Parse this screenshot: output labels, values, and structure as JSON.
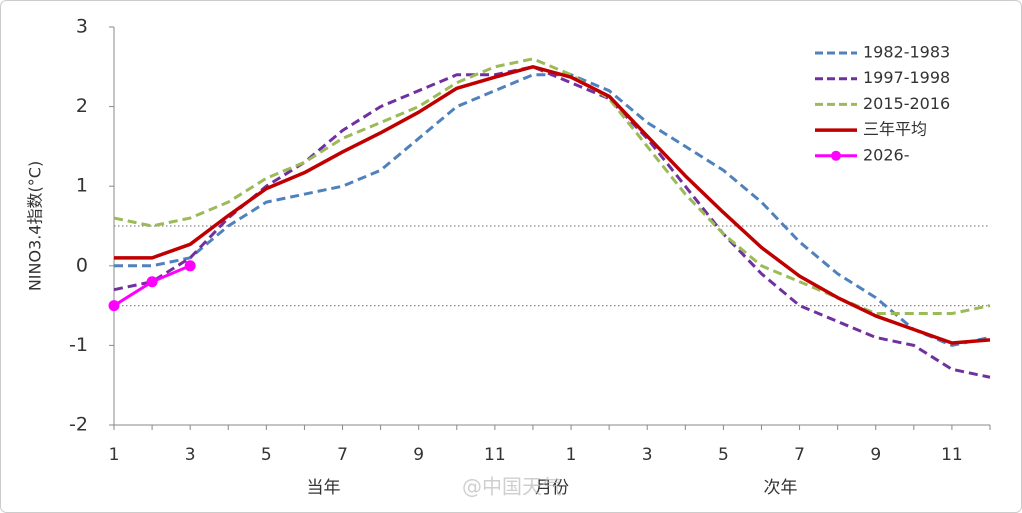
{
  "chart_data": {
    "type": "line",
    "ylabel": "NINO3.4指数(°C)",
    "categories": [
      "1",
      null,
      "3",
      null,
      "5",
      null,
      "7",
      null,
      "9",
      null,
      "11",
      null,
      "1",
      null,
      "3",
      null,
      "5",
      null,
      "7",
      null,
      "9",
      null,
      "11",
      null
    ],
    "category_groups": [
      "当年",
      "月份",
      "次年"
    ],
    "watermark": "@中国天气",
    "ylim": [
      -2,
      3
    ],
    "yticks": [
      -2,
      -1,
      0,
      1,
      2,
      3
    ],
    "reference_lines": [
      0.5,
      -0.5
    ],
    "legend": "upper right",
    "series": [
      {
        "name": "1982-1983",
        "color": "#4f81bd",
        "style": "dashed",
        "values": [
          0,
          0,
          0.1,
          0.5,
          0.8,
          0.9,
          1.0,
          1.2,
          1.6,
          2.0,
          2.2,
          2.4,
          2.4,
          2.2,
          1.8,
          1.5,
          1.2,
          0.8,
          0.3,
          -0.1,
          -0.4,
          -0.8,
          -1.0,
          -0.9
        ]
      },
      {
        "name": "1997-1998",
        "color": "#7030a0",
        "style": "dashed",
        "values": [
          -0.3,
          -0.2,
          0.1,
          0.6,
          1.0,
          1.3,
          1.7,
          2.0,
          2.2,
          2.4,
          2.4,
          2.5,
          2.3,
          2.1,
          1.6,
          1.0,
          0.4,
          -0.1,
          -0.5,
          -0.7,
          -0.9,
          -1.0,
          -1.3,
          -1.4
        ]
      },
      {
        "name": "2015-2016",
        "color": "#9bbb59",
        "style": "dashed",
        "values": [
          0.6,
          0.5,
          0.6,
          0.8,
          1.1,
          1.3,
          1.6,
          1.8,
          2.0,
          2.3,
          2.5,
          2.6,
          2.4,
          2.1,
          1.5,
          0.9,
          0.4,
          0.0,
          -0.2,
          -0.4,
          -0.6,
          -0.6,
          -0.6,
          -0.5
        ]
      },
      {
        "name": "三年平均",
        "color": "#c00000",
        "style": "solid",
        "values": [
          0.1,
          0.1,
          0.27,
          0.63,
          0.97,
          1.17,
          1.43,
          1.67,
          1.93,
          2.23,
          2.37,
          2.5,
          2.37,
          2.13,
          1.63,
          1.13,
          0.67,
          0.23,
          -0.13,
          -0.4,
          -0.63,
          -0.8,
          -0.97,
          -0.93
        ]
      },
      {
        "name": "2026-",
        "color": "#ff00ff",
        "style": "markers",
        "values": [
          -0.5,
          -0.2,
          0.0,
          null,
          null,
          null,
          null,
          null,
          null,
          null,
          null,
          null,
          null,
          null,
          null,
          null,
          null,
          null,
          null,
          null,
          null,
          null,
          null,
          null
        ]
      }
    ]
  }
}
